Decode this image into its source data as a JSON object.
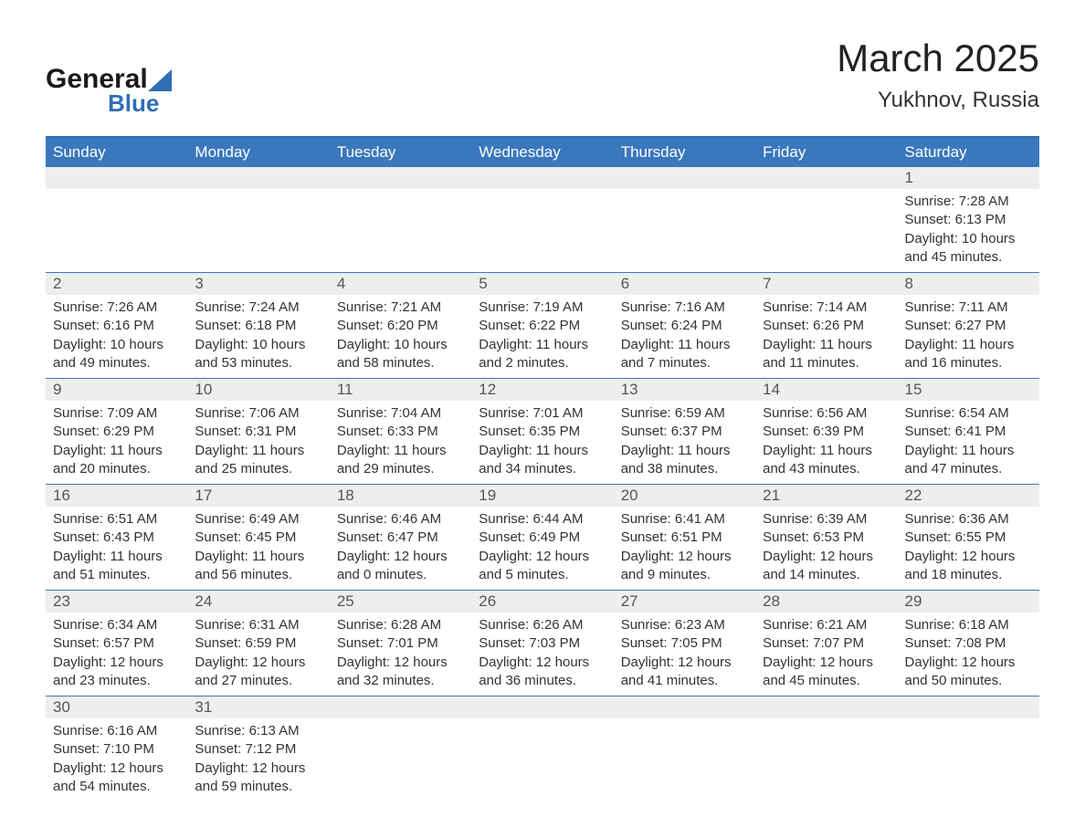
{
  "logo": {
    "general": "General",
    "blue": "Blue"
  },
  "header": {
    "month_title": "March 2025",
    "location": "Yukhnov, Russia"
  },
  "style": {
    "accent_color": "#3a77bc",
    "header_bg": "#3a77bc",
    "day_row_bg": "#eeeeee",
    "text_color": "#333333",
    "title_fontsize": 42,
    "location_fontsize": 24,
    "weekday_fontsize": 17,
    "daynum_fontsize": 17,
    "body_fontsize": 15
  },
  "weekdays": [
    "Sunday",
    "Monday",
    "Tuesday",
    "Wednesday",
    "Thursday",
    "Friday",
    "Saturday"
  ],
  "weeks": [
    [
      {
        "blank": true
      },
      {
        "blank": true
      },
      {
        "blank": true
      },
      {
        "blank": true
      },
      {
        "blank": true
      },
      {
        "blank": true
      },
      {
        "num": "1",
        "sunrise": "Sunrise: 7:28 AM",
        "sunset": "Sunset: 6:13 PM",
        "day1": "Daylight: 10 hours",
        "day2": "and 45 minutes."
      }
    ],
    [
      {
        "num": "2",
        "sunrise": "Sunrise: 7:26 AM",
        "sunset": "Sunset: 6:16 PM",
        "day1": "Daylight: 10 hours",
        "day2": "and 49 minutes."
      },
      {
        "num": "3",
        "sunrise": "Sunrise: 7:24 AM",
        "sunset": "Sunset: 6:18 PM",
        "day1": "Daylight: 10 hours",
        "day2": "and 53 minutes."
      },
      {
        "num": "4",
        "sunrise": "Sunrise: 7:21 AM",
        "sunset": "Sunset: 6:20 PM",
        "day1": "Daylight: 10 hours",
        "day2": "and 58 minutes."
      },
      {
        "num": "5",
        "sunrise": "Sunrise: 7:19 AM",
        "sunset": "Sunset: 6:22 PM",
        "day1": "Daylight: 11 hours",
        "day2": "and 2 minutes."
      },
      {
        "num": "6",
        "sunrise": "Sunrise: 7:16 AM",
        "sunset": "Sunset: 6:24 PM",
        "day1": "Daylight: 11 hours",
        "day2": "and 7 minutes."
      },
      {
        "num": "7",
        "sunrise": "Sunrise: 7:14 AM",
        "sunset": "Sunset: 6:26 PM",
        "day1": "Daylight: 11 hours",
        "day2": "and 11 minutes."
      },
      {
        "num": "8",
        "sunrise": "Sunrise: 7:11 AM",
        "sunset": "Sunset: 6:27 PM",
        "day1": "Daylight: 11 hours",
        "day2": "and 16 minutes."
      }
    ],
    [
      {
        "num": "9",
        "sunrise": "Sunrise: 7:09 AM",
        "sunset": "Sunset: 6:29 PM",
        "day1": "Daylight: 11 hours",
        "day2": "and 20 minutes."
      },
      {
        "num": "10",
        "sunrise": "Sunrise: 7:06 AM",
        "sunset": "Sunset: 6:31 PM",
        "day1": "Daylight: 11 hours",
        "day2": "and 25 minutes."
      },
      {
        "num": "11",
        "sunrise": "Sunrise: 7:04 AM",
        "sunset": "Sunset: 6:33 PM",
        "day1": "Daylight: 11 hours",
        "day2": "and 29 minutes."
      },
      {
        "num": "12",
        "sunrise": "Sunrise: 7:01 AM",
        "sunset": "Sunset: 6:35 PM",
        "day1": "Daylight: 11 hours",
        "day2": "and 34 minutes."
      },
      {
        "num": "13",
        "sunrise": "Sunrise: 6:59 AM",
        "sunset": "Sunset: 6:37 PM",
        "day1": "Daylight: 11 hours",
        "day2": "and 38 minutes."
      },
      {
        "num": "14",
        "sunrise": "Sunrise: 6:56 AM",
        "sunset": "Sunset: 6:39 PM",
        "day1": "Daylight: 11 hours",
        "day2": "and 43 minutes."
      },
      {
        "num": "15",
        "sunrise": "Sunrise: 6:54 AM",
        "sunset": "Sunset: 6:41 PM",
        "day1": "Daylight: 11 hours",
        "day2": "and 47 minutes."
      }
    ],
    [
      {
        "num": "16",
        "sunrise": "Sunrise: 6:51 AM",
        "sunset": "Sunset: 6:43 PM",
        "day1": "Daylight: 11 hours",
        "day2": "and 51 minutes."
      },
      {
        "num": "17",
        "sunrise": "Sunrise: 6:49 AM",
        "sunset": "Sunset: 6:45 PM",
        "day1": "Daylight: 11 hours",
        "day2": "and 56 minutes."
      },
      {
        "num": "18",
        "sunrise": "Sunrise: 6:46 AM",
        "sunset": "Sunset: 6:47 PM",
        "day1": "Daylight: 12 hours",
        "day2": "and 0 minutes."
      },
      {
        "num": "19",
        "sunrise": "Sunrise: 6:44 AM",
        "sunset": "Sunset: 6:49 PM",
        "day1": "Daylight: 12 hours",
        "day2": "and 5 minutes."
      },
      {
        "num": "20",
        "sunrise": "Sunrise: 6:41 AM",
        "sunset": "Sunset: 6:51 PM",
        "day1": "Daylight: 12 hours",
        "day2": "and 9 minutes."
      },
      {
        "num": "21",
        "sunrise": "Sunrise: 6:39 AM",
        "sunset": "Sunset: 6:53 PM",
        "day1": "Daylight: 12 hours",
        "day2": "and 14 minutes."
      },
      {
        "num": "22",
        "sunrise": "Sunrise: 6:36 AM",
        "sunset": "Sunset: 6:55 PM",
        "day1": "Daylight: 12 hours",
        "day2": "and 18 minutes."
      }
    ],
    [
      {
        "num": "23",
        "sunrise": "Sunrise: 6:34 AM",
        "sunset": "Sunset: 6:57 PM",
        "day1": "Daylight: 12 hours",
        "day2": "and 23 minutes."
      },
      {
        "num": "24",
        "sunrise": "Sunrise: 6:31 AM",
        "sunset": "Sunset: 6:59 PM",
        "day1": "Daylight: 12 hours",
        "day2": "and 27 minutes."
      },
      {
        "num": "25",
        "sunrise": "Sunrise: 6:28 AM",
        "sunset": "Sunset: 7:01 PM",
        "day1": "Daylight: 12 hours",
        "day2": "and 32 minutes."
      },
      {
        "num": "26",
        "sunrise": "Sunrise: 6:26 AM",
        "sunset": "Sunset: 7:03 PM",
        "day1": "Daylight: 12 hours",
        "day2": "and 36 minutes."
      },
      {
        "num": "27",
        "sunrise": "Sunrise: 6:23 AM",
        "sunset": "Sunset: 7:05 PM",
        "day1": "Daylight: 12 hours",
        "day2": "and 41 minutes."
      },
      {
        "num": "28",
        "sunrise": "Sunrise: 6:21 AM",
        "sunset": "Sunset: 7:07 PM",
        "day1": "Daylight: 12 hours",
        "day2": "and 45 minutes."
      },
      {
        "num": "29",
        "sunrise": "Sunrise: 6:18 AM",
        "sunset": "Sunset: 7:08 PM",
        "day1": "Daylight: 12 hours",
        "day2": "and 50 minutes."
      }
    ],
    [
      {
        "num": "30",
        "sunrise": "Sunrise: 6:16 AM",
        "sunset": "Sunset: 7:10 PM",
        "day1": "Daylight: 12 hours",
        "day2": "and 54 minutes."
      },
      {
        "num": "31",
        "sunrise": "Sunrise: 6:13 AM",
        "sunset": "Sunset: 7:12 PM",
        "day1": "Daylight: 12 hours",
        "day2": "and 59 minutes."
      },
      {
        "blank": true
      },
      {
        "blank": true
      },
      {
        "blank": true
      },
      {
        "blank": true
      },
      {
        "blank": true
      }
    ]
  ]
}
